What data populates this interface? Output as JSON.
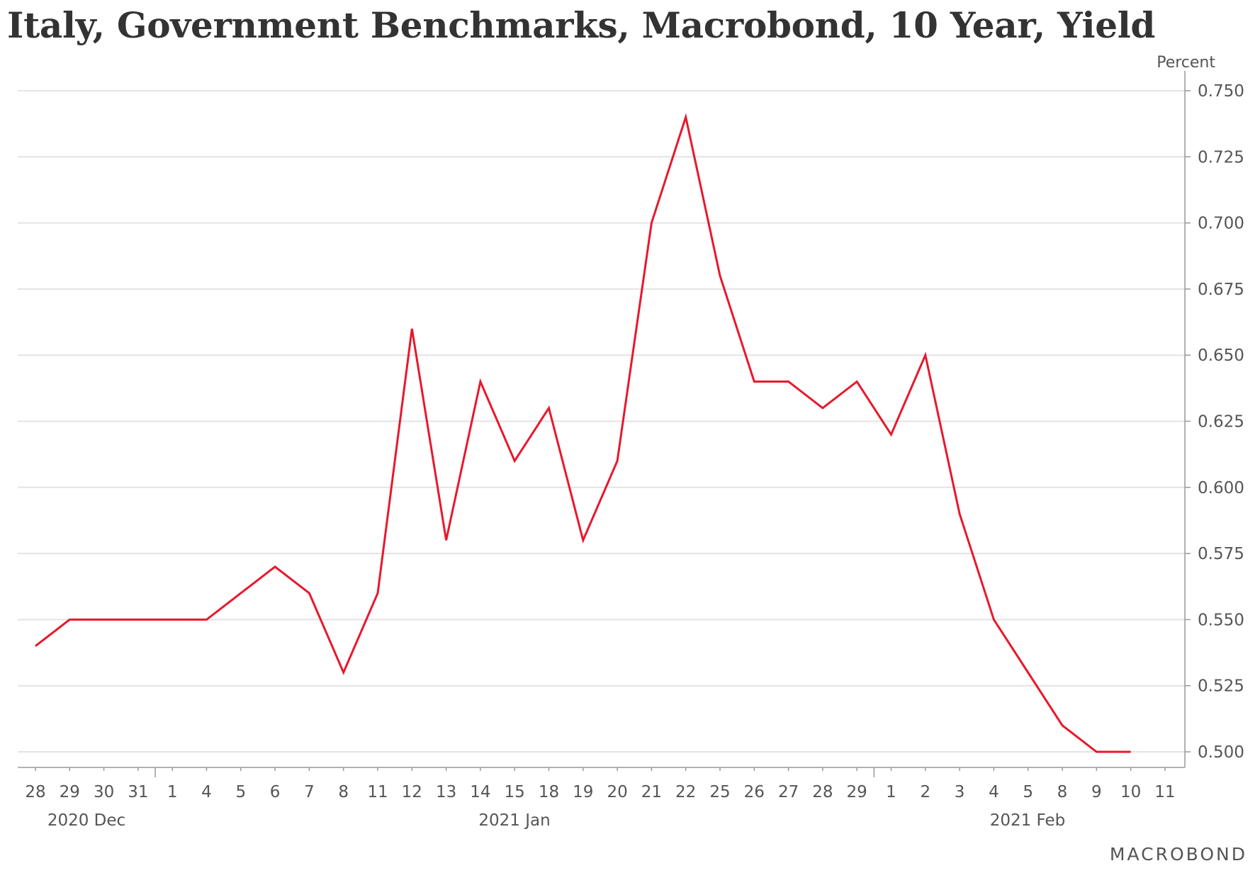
{
  "chart_data": {
    "type": "line",
    "title": "Italy, Government Benchmarks, Macrobond, 10 Year, Yield",
    "ylabel": "Percent",
    "ylim": [
      0.5,
      0.75
    ],
    "yticks": [
      "0.750",
      "0.725",
      "0.700",
      "0.675",
      "0.650",
      "0.625",
      "0.600",
      "0.575",
      "0.550",
      "0.525",
      "0.500"
    ],
    "grid": true,
    "y_axis_side": "right",
    "line_color": "#e8182c",
    "x_tick_labels": [
      "28",
      "29",
      "30",
      "31",
      "1",
      "4",
      "5",
      "6",
      "7",
      "8",
      "11",
      "12",
      "13",
      "14",
      "15",
      "18",
      "19",
      "20",
      "21",
      "22",
      "25",
      "26",
      "27",
      "28",
      "29",
      "1",
      "2",
      "3",
      "4",
      "5",
      "8",
      "9",
      "10",
      "11"
    ],
    "x_periods": [
      "2020 Dec",
      "2021 Jan",
      "2021 Feb"
    ],
    "x": [
      "2020-12-28",
      "2020-12-29",
      "2020-12-30",
      "2020-12-31",
      "2021-01-01",
      "2021-01-04",
      "2021-01-05",
      "2021-01-06",
      "2021-01-07",
      "2021-01-08",
      "2021-01-11",
      "2021-01-12",
      "2021-01-13",
      "2021-01-14",
      "2021-01-15",
      "2021-01-18",
      "2021-01-19",
      "2021-01-20",
      "2021-01-21",
      "2021-01-22",
      "2021-01-25",
      "2021-01-26",
      "2021-01-27",
      "2021-01-28",
      "2021-01-29",
      "2021-02-01",
      "2021-02-02",
      "2021-02-03",
      "2021-02-04",
      "2021-02-05",
      "2021-02-08",
      "2021-02-09",
      "2021-02-10"
    ],
    "series": [
      {
        "values": [
          0.54,
          0.55,
          0.55,
          0.55,
          0.55,
          0.55,
          0.56,
          0.57,
          0.56,
          0.53,
          0.56,
          0.66,
          0.58,
          0.64,
          0.61,
          0.63,
          0.58,
          0.61,
          0.7,
          0.74,
          0.68,
          0.64,
          0.64,
          0.63,
          0.64,
          0.62,
          0.65,
          0.59,
          0.55,
          0.53,
          0.51,
          0.5,
          0.5
        ]
      }
    ]
  },
  "logo": {
    "text": "MACROBOND"
  }
}
